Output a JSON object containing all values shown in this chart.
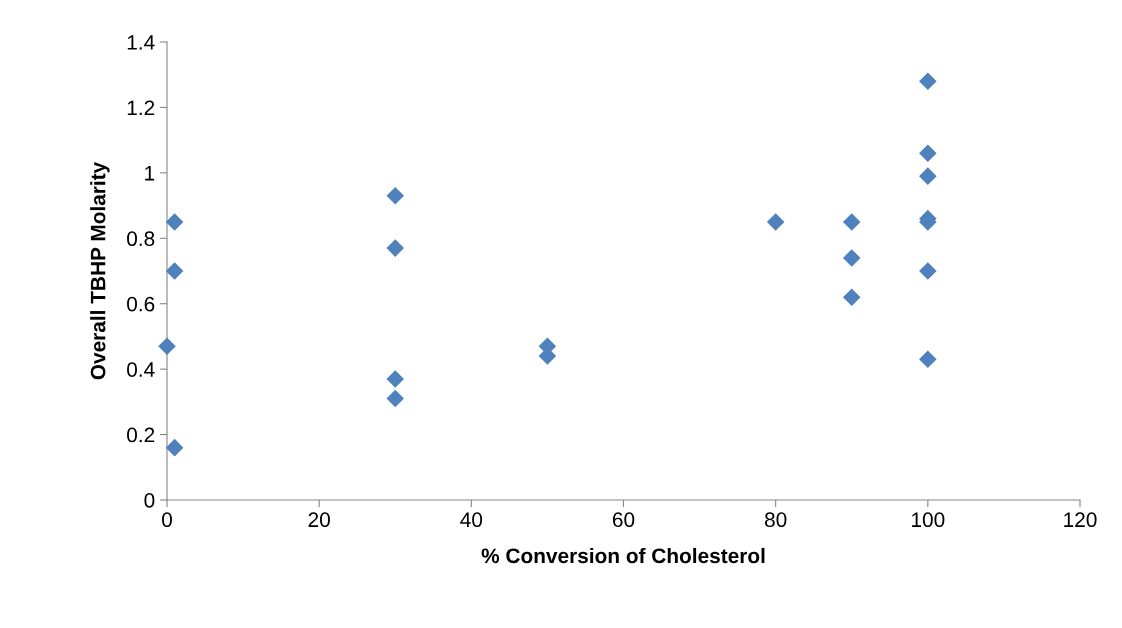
{
  "chart_data": {
    "type": "scatter",
    "xlabel": "% Conversion of Cholesterol",
    "ylabel": "Overall TBHP Molarity",
    "x": [
      0,
      1,
      1,
      1,
      30,
      30,
      30,
      30,
      50,
      50,
      80,
      90,
      90,
      90,
      100,
      100,
      100,
      100,
      100,
      100,
      100
    ],
    "values": [
      0.47,
      0.85,
      0.7,
      0.16,
      0.93,
      0.77,
      0.37,
      0.31,
      0.47,
      0.44,
      0.85,
      0.85,
      0.74,
      0.62,
      1.28,
      1.06,
      0.99,
      0.86,
      0.85,
      0.7,
      0.43
    ],
    "color": "#4f81bd",
    "marker": "diamond",
    "xlim": [
      0,
      120
    ],
    "xticks": [
      0,
      20,
      40,
      60,
      80,
      100,
      120
    ],
    "ylim": [
      0,
      1.4
    ],
    "yticks": [
      0,
      {
        "value": 0.2,
        "label": "0.2"
      },
      {
        "value": 0.4,
        "label": "0.4"
      },
      {
        "value": 0.6,
        "label": "0.6"
      },
      {
        "value": 0.8,
        "label": "0.8"
      },
      1,
      {
        "value": 1.2,
        "label": "1.2"
      },
      {
        "value": 1.4,
        "label": "1.4"
      }
    ],
    "grid": false,
    "legend": false
  }
}
